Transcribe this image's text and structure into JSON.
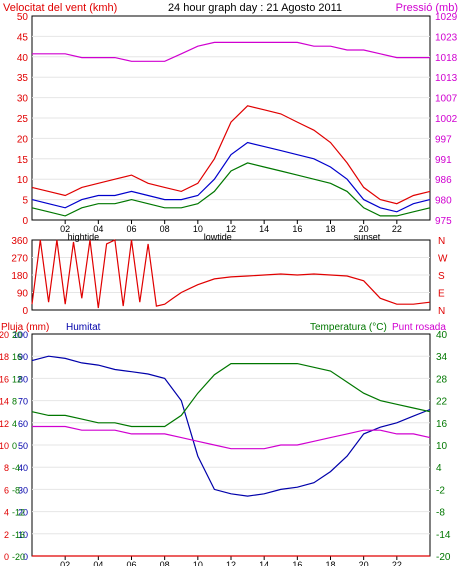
{
  "header": {
    "left": "Velocitat del vent (kmh)",
    "center": "24 hour graph day : 21 Agosto 2011",
    "right": "Pressió (mb)"
  },
  "colors": {
    "wind_gust": "#e00000",
    "wind_avg": "#0000cc",
    "wind_low": "#007700",
    "pressure": "#d000d0",
    "direction": "#e00000",
    "humidity": "#0000aa",
    "temperature": "#007700",
    "dewpoint": "#d000d0",
    "rain": "#e00000",
    "frame": "#000000"
  },
  "chart_data": [
    {
      "type": "line",
      "title": "24 hour graph day : 21 Agosto 2011",
      "y_left_label": "Velocitat del vent (kmh)",
      "y_right_label": "Pressió (mb)",
      "y_left_ticks": [
        0,
        5,
        10,
        15,
        20,
        25,
        30,
        35,
        40,
        45,
        50
      ],
      "y_right_ticks": [
        975,
        980,
        986,
        991,
        997,
        1002,
        1007,
        1013,
        1018,
        1023,
        1029
      ],
      "ylim_left": [
        0,
        50
      ],
      "ylim_right": [
        975,
        1029
      ],
      "x_ticks": [
        "02",
        "04",
        "06",
        "08",
        "10",
        "12",
        "14",
        "16",
        "18",
        "20",
        "22"
      ],
      "x_markers": [
        "hightide",
        "lowtide",
        "sunset"
      ],
      "series": [
        {
          "name": "gust",
          "color_key": "wind_gust",
          "x": [
            0,
            1,
            2,
            3,
            4,
            5,
            6,
            7,
            8,
            9,
            10,
            11,
            12,
            13,
            14,
            15,
            16,
            17,
            18,
            19,
            20,
            21,
            22,
            23,
            24
          ],
          "values": [
            8,
            7,
            6,
            8,
            9,
            10,
            11,
            9,
            8,
            7,
            9,
            15,
            24,
            28,
            27,
            26,
            24,
            22,
            19,
            14,
            8,
            5,
            4,
            6,
            7
          ]
        },
        {
          "name": "average",
          "color_key": "wind_avg",
          "x": [
            0,
            1,
            2,
            3,
            4,
            5,
            6,
            7,
            8,
            9,
            10,
            11,
            12,
            13,
            14,
            15,
            16,
            17,
            18,
            19,
            20,
            21,
            22,
            23,
            24
          ],
          "values": [
            5,
            4,
            3,
            5,
            6,
            6,
            7,
            6,
            5,
            5,
            6,
            10,
            16,
            19,
            18,
            17,
            16,
            15,
            13,
            10,
            5,
            3,
            2,
            4,
            5
          ]
        },
        {
          "name": "low",
          "color_key": "wind_low",
          "x": [
            0,
            1,
            2,
            3,
            4,
            5,
            6,
            7,
            8,
            9,
            10,
            11,
            12,
            13,
            14,
            15,
            16,
            17,
            18,
            19,
            20,
            21,
            22,
            23,
            24
          ],
          "values": [
            3,
            2,
            1,
            3,
            4,
            4,
            5,
            4,
            3,
            3,
            4,
            7,
            12,
            14,
            13,
            12,
            11,
            10,
            9,
            7,
            3,
            1,
            1,
            2,
            3
          ]
        },
        {
          "name": "pressure",
          "color_key": "pressure",
          "x": [
            0,
            1,
            2,
            3,
            4,
            5,
            6,
            7,
            8,
            9,
            10,
            11,
            12,
            13,
            14,
            15,
            16,
            17,
            18,
            19,
            20,
            21,
            22,
            23,
            24
          ],
          "values": [
            1019,
            1019,
            1019,
            1018,
            1018,
            1018,
            1017,
            1017,
            1017,
            1019,
            1021,
            1022,
            1022,
            1022,
            1022,
            1022,
            1022,
            1021,
            1021,
            1020,
            1020,
            1019,
            1018,
            1018,
            1018
          ]
        }
      ]
    },
    {
      "type": "line",
      "y_right_ticks": [
        "N",
        "W",
        "S",
        "E",
        "N"
      ],
      "y_left_ticks": [
        0,
        90,
        180,
        270,
        360
      ],
      "ylim": [
        0,
        360
      ],
      "series": [
        {
          "name": "direction",
          "color_key": "direction",
          "x": [
            0,
            0.5,
            1,
            1.5,
            2,
            2.5,
            3,
            3.5,
            4,
            4.5,
            5,
            5.5,
            6,
            6.5,
            7,
            7.5,
            8,
            8.5,
            9,
            9.5,
            10,
            11,
            12,
            13,
            14,
            15,
            16,
            17,
            18,
            19,
            20,
            21,
            22,
            23,
            24
          ],
          "values": [
            30,
            360,
            40,
            360,
            30,
            350,
            60,
            360,
            10,
            340,
            360,
            20,
            360,
            40,
            340,
            20,
            30,
            60,
            90,
            110,
            130,
            160,
            170,
            175,
            180,
            185,
            180,
            185,
            180,
            175,
            150,
            60,
            30,
            30,
            40
          ]
        }
      ]
    },
    {
      "type": "line",
      "y_left_labels": [
        "Pluja (mm)",
        "Humitat"
      ],
      "y_right_labels": [
        "Temperatura (°C)",
        "Punt rosada"
      ],
      "rain_ticks": [
        0,
        2,
        4,
        6,
        8,
        10,
        12,
        14,
        16,
        18,
        20
      ],
      "humidity_ticks": [
        0,
        10,
        20,
        30,
        40,
        50,
        60,
        70,
        80,
        90,
        100
      ],
      "temp_ticks": [
        -20,
        -16,
        -12,
        -8,
        -4,
        0,
        4,
        8,
        12,
        16,
        20
      ],
      "temp_ticks_right": [
        -20,
        -14,
        -8,
        -2,
        4,
        10,
        16,
        22,
        28,
        34,
        40
      ],
      "ylim_left": [
        0,
        100
      ],
      "ylim_right": [
        -20,
        40
      ],
      "x_ticks": [
        "02",
        "04",
        "06",
        "08",
        "10",
        "12",
        "14",
        "16",
        "18",
        "20",
        "22"
      ],
      "x_markers": [
        "hightide",
        "lowtide",
        "sunset"
      ],
      "series": [
        {
          "name": "humidity",
          "color_key": "humidity",
          "x": [
            0,
            1,
            2,
            3,
            4,
            5,
            6,
            7,
            8,
            9,
            10,
            11,
            12,
            13,
            14,
            15,
            16,
            17,
            18,
            19,
            20,
            21,
            22,
            23,
            24
          ],
          "values": [
            88,
            90,
            89,
            87,
            86,
            84,
            83,
            82,
            80,
            70,
            45,
            30,
            28,
            27,
            28,
            30,
            31,
            33,
            38,
            45,
            55,
            58,
            60,
            63,
            66
          ]
        },
        {
          "name": "temperature",
          "color_key": "temperature",
          "x": [
            0,
            1,
            2,
            3,
            4,
            5,
            6,
            7,
            8,
            9,
            10,
            11,
            12,
            13,
            14,
            15,
            16,
            17,
            18,
            19,
            20,
            21,
            22,
            23,
            24
          ],
          "values": [
            19,
            18,
            18,
            17,
            16,
            16,
            15,
            15,
            15,
            18,
            24,
            29,
            32,
            32,
            32,
            32,
            32,
            31,
            30,
            27,
            24,
            22,
            21,
            20,
            19
          ]
        },
        {
          "name": "dewpoint",
          "color_key": "dewpoint",
          "x": [
            0,
            1,
            2,
            3,
            4,
            5,
            6,
            7,
            8,
            9,
            10,
            11,
            12,
            13,
            14,
            15,
            16,
            17,
            18,
            19,
            20,
            21,
            22,
            23,
            24
          ],
          "values": [
            15,
            15,
            15,
            14,
            14,
            14,
            13,
            13,
            13,
            12,
            11,
            10,
            9,
            9,
            9,
            10,
            10,
            11,
            12,
            13,
            14,
            14,
            13,
            13,
            12
          ]
        },
        {
          "name": "rain",
          "color_key": "rain",
          "x": [
            0,
            24
          ],
          "values": [
            0,
            0
          ]
        }
      ]
    }
  ]
}
